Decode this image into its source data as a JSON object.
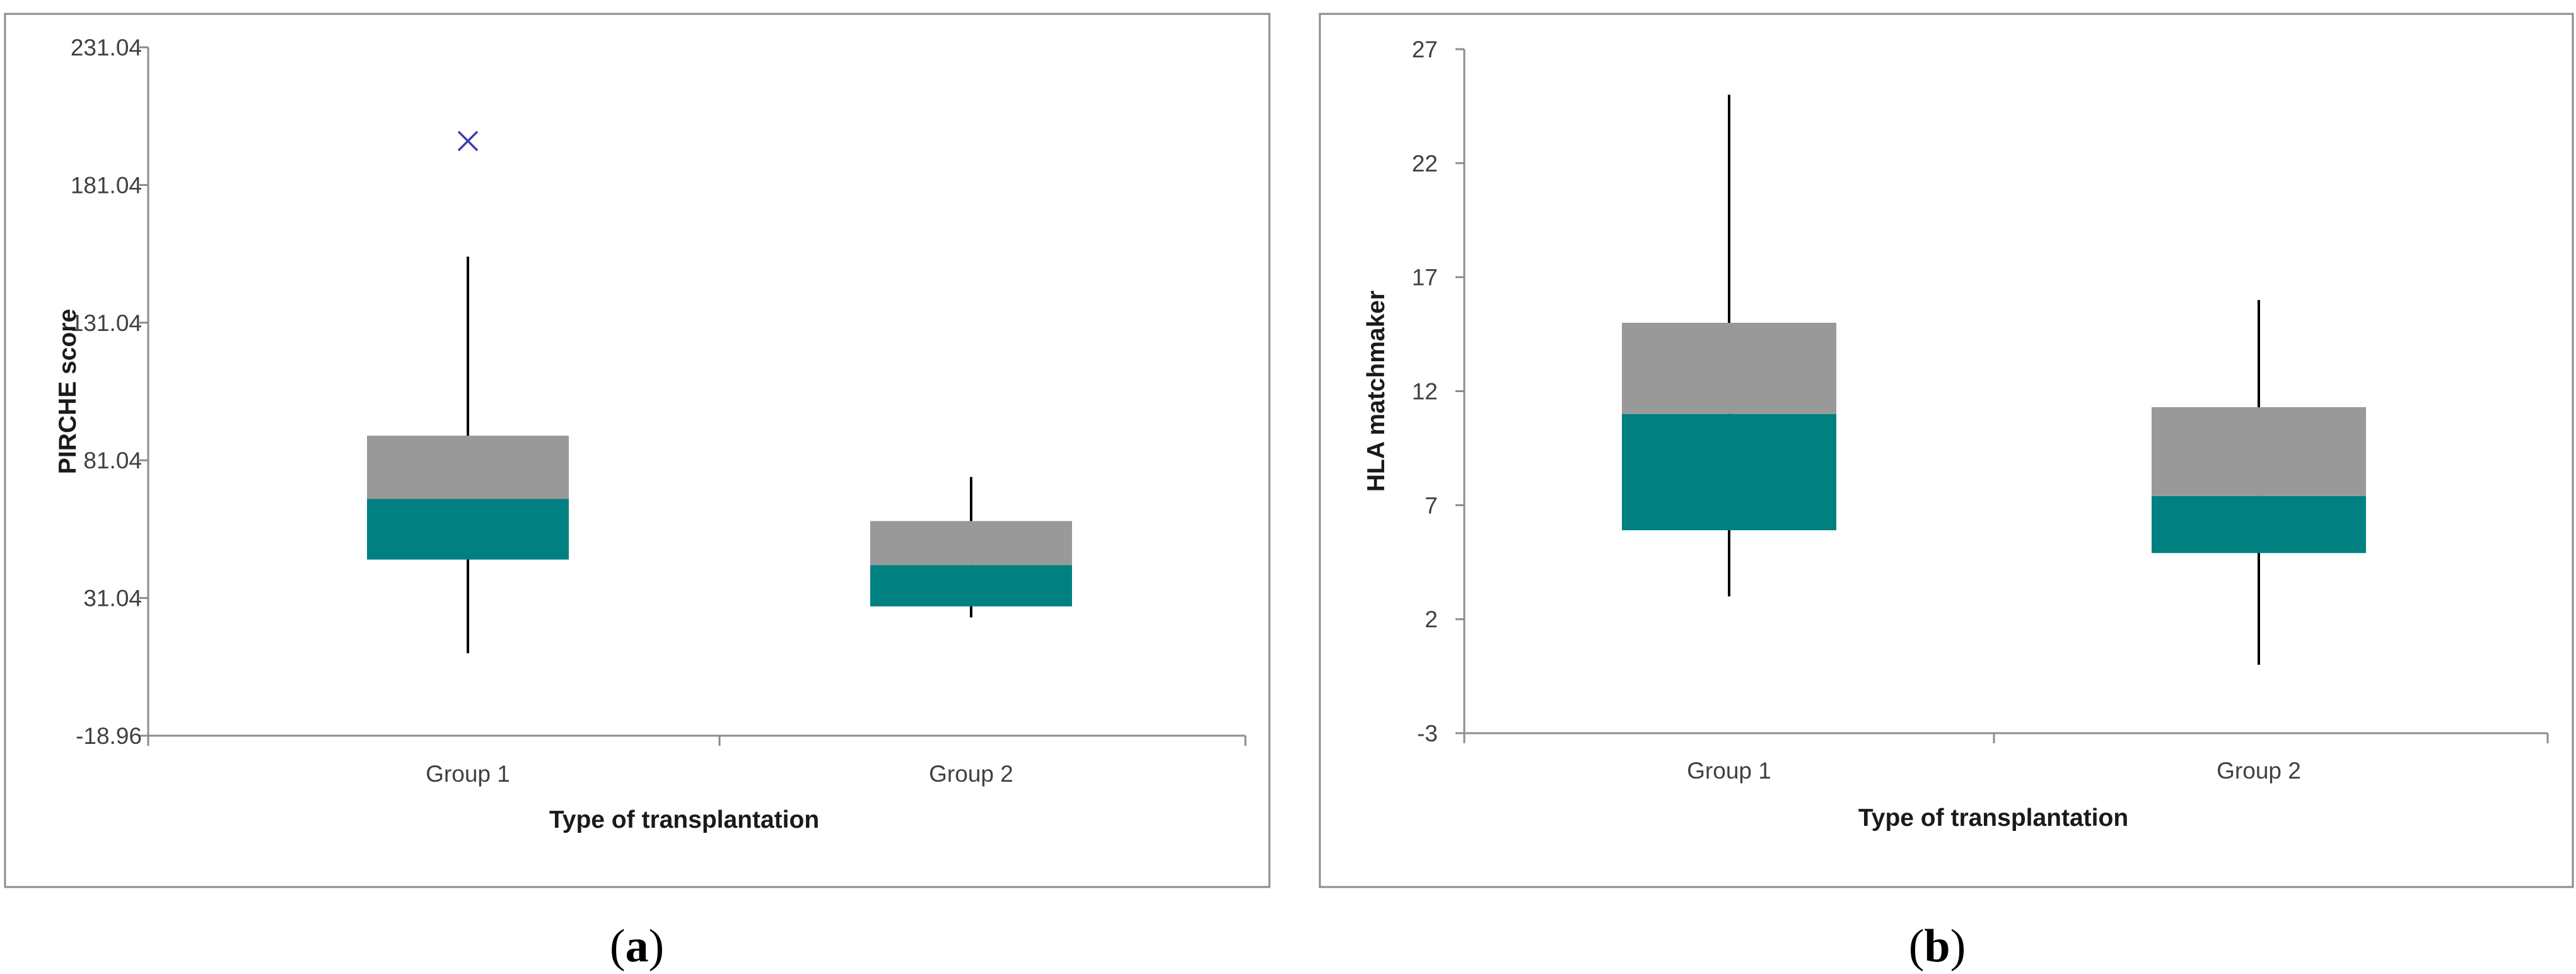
{
  "chart_data": [
    {
      "type": "box",
      "panel_label": "a",
      "ylabel": "PIRCHE score",
      "xlabel": "Type of transplantation",
      "yticks": [
        "231.04",
        "181.04",
        "131.04",
        "81.04",
        "31.04",
        "-18.96"
      ],
      "ylim": [
        -18.96,
        231.04
      ],
      "categories": [
        "Group 1",
        "Group 2"
      ],
      "boxes": [
        {
          "name": "Group 1",
          "min": 11,
          "q1": 45,
          "median": 67,
          "q3": 90,
          "max": 155,
          "outliers": [
            197
          ]
        },
        {
          "name": "Group 2",
          "min": 24,
          "q1": 28,
          "median": 43,
          "q3": 59,
          "max": 75,
          "outliers": []
        }
      ],
      "colors": {
        "lower_box": "#008080",
        "upper_box": "#999999",
        "outlier": "#3a3ab0",
        "whisker": "#000000"
      }
    },
    {
      "type": "box",
      "panel_label": "b",
      "ylabel": "HLA matchmaker",
      "xlabel": "Type of transplantation",
      "yticks": [
        "27",
        "22",
        "17",
        "12",
        "7",
        "2",
        "-3"
      ],
      "ylim": [
        -3,
        27
      ],
      "categories": [
        "Group 1",
        "Group 2"
      ],
      "boxes": [
        {
          "name": "Group 1",
          "min": 3,
          "q1": 5.9,
          "median": 11,
          "q3": 15,
          "max": 25,
          "outliers": []
        },
        {
          "name": "Group 2",
          "min": 0,
          "q1": 4.9,
          "median": 7.4,
          "q3": 11.3,
          "max": 16,
          "outliers": []
        }
      ],
      "colors": {
        "lower_box": "#008080",
        "upper_box": "#999999",
        "outlier": "#3a3ab0",
        "whisker": "#000000"
      }
    }
  ]
}
